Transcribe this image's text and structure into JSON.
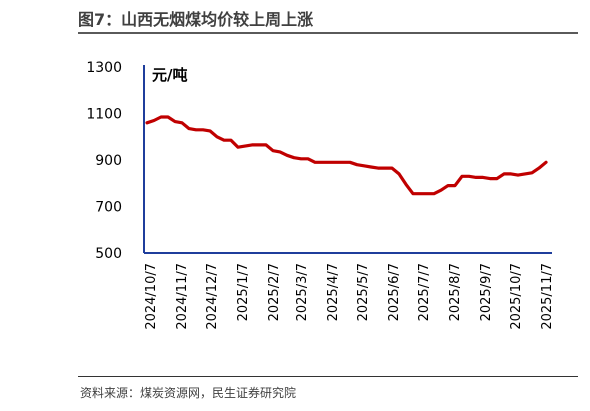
{
  "title": "图7：山西无烟煤均价较上周上涨",
  "source": "资料来源：煤炭资源网，民生证券研究院",
  "colors": {
    "line": "#C00000",
    "axis": "#1F3E9C",
    "text": "#000000",
    "title": "#404040"
  },
  "chart_data": {
    "type": "line",
    "ylabel": "元/吨",
    "xlabel": "",
    "ylim": [
      500,
      1300
    ],
    "yticks": [
      500,
      700,
      900,
      1100,
      1300
    ],
    "xticks": [
      "2024/10/7",
      "2024/11/7",
      "2024/12/7",
      "2025/1/7",
      "2025/2/7",
      "2025/3/7",
      "2025/4/7",
      "2025/5/7",
      "2025/6/7",
      "2025/7/7",
      "2025/8/7",
      "2025/9/7",
      "2025/10/7",
      "2025/11/7"
    ],
    "x": [
      "2024/10/4",
      "2024/10/11",
      "2024/10/18",
      "2024/10/25",
      "2024/11/1",
      "2024/11/8",
      "2024/11/15",
      "2024/11/22",
      "2024/11/29",
      "2024/12/6",
      "2024/12/13",
      "2024/12/20",
      "2024/12/27",
      "2025/1/3",
      "2025/1/10",
      "2025/1/17",
      "2025/1/24",
      "2025/1/31",
      "2025/2/7",
      "2025/2/14",
      "2025/2/21",
      "2025/2/28",
      "2025/3/7",
      "2025/3/14",
      "2025/3/21",
      "2025/3/28",
      "2025/4/4",
      "2025/4/11",
      "2025/4/18",
      "2025/4/25",
      "2025/5/2",
      "2025/5/9",
      "2025/5/16",
      "2025/5/23",
      "2025/5/30",
      "2025/6/6",
      "2025/6/13",
      "2025/6/20",
      "2025/6/27",
      "2025/7/4",
      "2025/7/11",
      "2025/7/18",
      "2025/7/25",
      "2025/8/1",
      "2025/8/8",
      "2025/8/15",
      "2025/8/22",
      "2025/8/29",
      "2025/9/5",
      "2025/9/12",
      "2025/9/19",
      "2025/9/26",
      "2025/10/3",
      "2025/10/10",
      "2025/10/17",
      "2025/10/24",
      "2025/10/31",
      "2025/11/7"
    ],
    "series": [
      {
        "values": [
          1060,
          1070,
          1085,
          1085,
          1065,
          1060,
          1035,
          1030,
          1030,
          1025,
          1000,
          985,
          985,
          955,
          960,
          965,
          965,
          965,
          940,
          935,
          920,
          910,
          905,
          905,
          890,
          890,
          890,
          890,
          890,
          890,
          880,
          875,
          870,
          865,
          865,
          865,
          840,
          795,
          755,
          755,
          755,
          755,
          770,
          790,
          790,
          830,
          830,
          825,
          825,
          820,
          820,
          840,
          840,
          835,
          840,
          845,
          865,
          890
        ]
      }
    ]
  }
}
